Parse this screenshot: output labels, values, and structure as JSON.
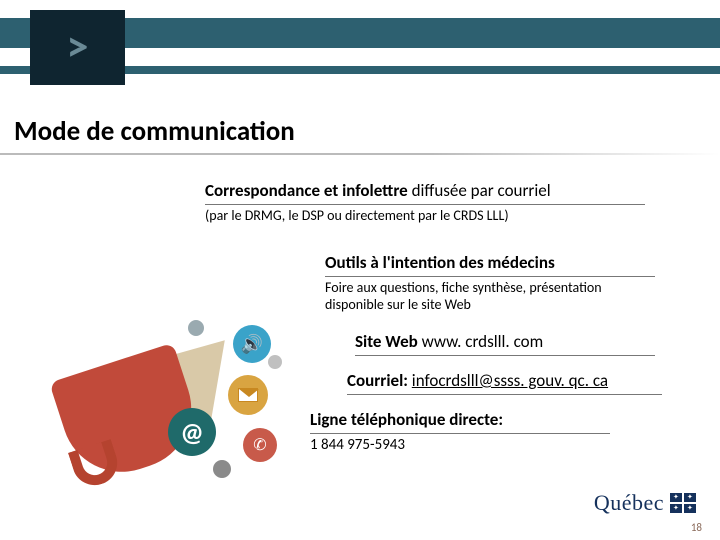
{
  "colors": {
    "teal": "#2d6070",
    "darkbox": "#0f2530",
    "chevron": "#6a8a96",
    "quebec_blue": "#15315c",
    "megaphone_red": "#c14a3a",
    "megaphone_cone": "#d9c9a8"
  },
  "title": "Mode de communication",
  "blocks": {
    "corr": {
      "title_main": "Correspondance et infolettre",
      "title_tail": " diffusée par courriel",
      "sub": "(par le DRMG, le DSP ou directement par le CRDS LLL)"
    },
    "outils": {
      "title": "Outils à l'intention des médecins",
      "sub": "Foire aux questions, fiche synthèse, présentation disponible sur le site Web"
    },
    "site": {
      "label": "Site Web ",
      "url": "www. crdslll. com"
    },
    "courriel": {
      "label": "Courriel: ",
      "email": "infocrdslll@ssss. gouv. qc. ca"
    },
    "tel": {
      "label": "Ligne téléphonique directe:",
      "number": "1 844 975-5943"
    }
  },
  "logo_text": "Québec",
  "page_number": "18"
}
